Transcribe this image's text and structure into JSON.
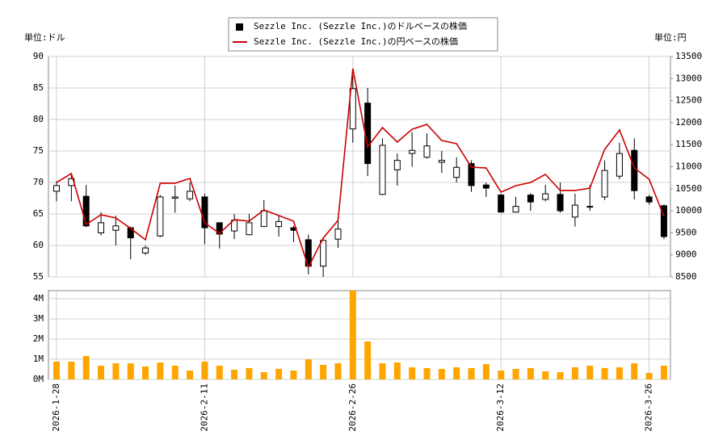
{
  "chart_data": [
    {
      "type": "candlestick",
      "ylabel": "単位:ドル",
      "y2label": "単位:円",
      "grid": true,
      "legend": "top",
      "ylim": [
        55,
        90
      ],
      "yticks": [
        55,
        60,
        65,
        70,
        75,
        80,
        85,
        90
      ],
      "y2lim": [
        8500,
        13500
      ],
      "y2ticks": [
        8500,
        9000,
        9500,
        10000,
        10500,
        11000,
        11500,
        12000,
        12500,
        13000,
        13500
      ],
      "series": [
        {
          "name": "Sezzle Inc. (Sezzle Inc.)のドルベースの株価",
          "color": "#000000",
          "open": [
            68.6,
            69.5,
            67.8,
            62.0,
            62.4,
            62.8,
            58.8,
            61.5,
            67.5,
            67.4,
            67.7,
            63.6,
            62.3,
            61.7,
            63.0,
            63.0,
            62.8,
            60.9,
            56.7,
            61.0,
            78.5,
            82.6,
            68.1,
            72.0,
            74.6,
            74.0,
            73.2,
            70.8,
            73.0,
            69.6,
            68.0,
            65.3,
            68.0,
            67.3,
            68.1,
            64.5,
            66.1,
            67.7,
            71.0,
            75.1,
            67.7,
            66.3
          ],
          "high": [
            70.2,
            71.5,
            69.6,
            65.3,
            64.7,
            63.0,
            60.0,
            68.0,
            69.5,
            70.0,
            68.2,
            63.6,
            65.0,
            65.0,
            67.2,
            64.8,
            63.1,
            61.7,
            61.0,
            64.2,
            87.0,
            85.0,
            77.0,
            74.6,
            78.0,
            77.8,
            75.0,
            74.0,
            73.5,
            70.0,
            68.2,
            67.7,
            68.3,
            69.6,
            70.0,
            68.2,
            69.6,
            73.5,
            76.3,
            77.0,
            68.0,
            66.5
          ],
          "low": [
            67.0,
            67.0,
            62.9,
            61.6,
            60.0,
            57.8,
            58.5,
            61.3,
            65.2,
            67.0,
            60.2,
            59.5,
            61.0,
            61.6,
            63.0,
            61.4,
            60.5,
            55.4,
            55.0,
            59.6,
            76.3,
            71.0,
            68.0,
            69.5,
            72.5,
            73.8,
            71.5,
            70.0,
            68.5,
            67.7,
            65.2,
            65.2,
            65.5,
            67.0,
            65.2,
            63.0,
            65.5,
            67.2,
            70.5,
            67.3,
            66.5,
            61.0
          ],
          "close": [
            69.5,
            70.6,
            63.1,
            63.6,
            63.1,
            61.2,
            59.6,
            67.7,
            67.7,
            68.6,
            62.8,
            61.8,
            64.0,
            63.6,
            65.5,
            63.8,
            62.4,
            56.7,
            60.8,
            62.6,
            84.9,
            73.0,
            75.9,
            73.5,
            75.1,
            75.8,
            73.5,
            72.4,
            69.5,
            69.1,
            65.3,
            66.2,
            66.9,
            68.2,
            65.5,
            66.4,
            66.2,
            71.9,
            74.6,
            68.7,
            66.9,
            61.4
          ]
        },
        {
          "name": "Sezzle Inc. (Sezzle Inc.)の円ベースの株価",
          "color": "#cc0000",
          "axis": "y2",
          "values": [
            10643,
            10844,
            9690,
            9910,
            9837,
            9600,
            9343,
            10625,
            10625,
            10735,
            9727,
            9489,
            9800,
            9764,
            10020,
            9892,
            9764,
            8720,
            9380,
            9782,
            13225,
            11450,
            11888,
            11559,
            11850,
            11960,
            11595,
            11522,
            10990,
            10972,
            10423,
            10570,
            10643,
            10826,
            10460,
            10460,
            10515,
            11394,
            11833,
            10972,
            10716,
            9874
          ]
        }
      ]
    },
    {
      "type": "bar",
      "color": "#ffa500",
      "grid": true,
      "categories": [
        "2026-1-28",
        null,
        null,
        null,
        null,
        null,
        null,
        null,
        null,
        null,
        "2026-2-11",
        null,
        null,
        null,
        null,
        null,
        null,
        null,
        null,
        null,
        "2026-2-26",
        null,
        null,
        null,
        null,
        null,
        null,
        null,
        null,
        null,
        "2026-3-12",
        null,
        null,
        null,
        null,
        null,
        null,
        null,
        null,
        null,
        "2026-3-26",
        null
      ],
      "values": [
        880000,
        880000,
        1160000,
        680000,
        800000,
        800000,
        640000,
        840000,
        680000,
        440000,
        880000,
        680000,
        480000,
        560000,
        360000,
        520000,
        440000,
        1000000,
        720000,
        800000,
        4400000,
        1880000,
        800000,
        840000,
        600000,
        560000,
        520000,
        600000,
        560000,
        760000,
        440000,
        520000,
        560000,
        400000,
        360000,
        600000,
        680000,
        560000,
        600000,
        800000,
        320000,
        680000
      ],
      "ylim": [
        0,
        4400000
      ],
      "yticks": [
        {
          "value": 0,
          "label": "0M"
        },
        {
          "value": 1000000,
          "label": "1M"
        },
        {
          "value": 2000000,
          "label": "2M"
        },
        {
          "value": 3000000,
          "label": "3M"
        },
        {
          "value": 4000000,
          "label": "4M"
        }
      ]
    }
  ]
}
